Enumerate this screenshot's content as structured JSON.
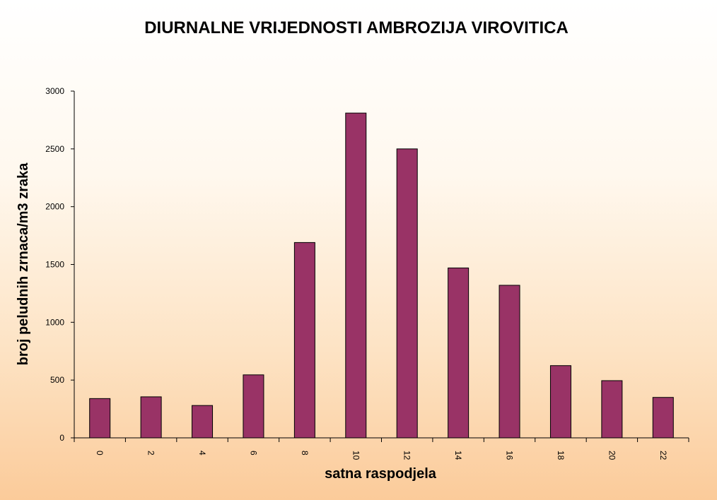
{
  "chart_data": {
    "type": "bar",
    "title": "DIURNALNE VRIJEDNOSTI AMBROZIJA VIROVITICA",
    "xlabel": "satna raspodjela",
    "ylabel": "broj peludnih  zrnaca/m3 zraka",
    "categories": [
      "0",
      "2",
      "4",
      "6",
      "8",
      "10",
      "12",
      "14",
      "16",
      "18",
      "20",
      "22"
    ],
    "values": [
      340,
      355,
      280,
      545,
      1690,
      2810,
      2500,
      1470,
      1320,
      625,
      495,
      350
    ],
    "ylim": [
      0,
      3000
    ],
    "yticks": [
      "0",
      "500",
      "1000",
      "1500",
      "2000",
      "2500",
      "3000"
    ],
    "bar_color": "#993366",
    "grid": false,
    "legend": "none"
  }
}
